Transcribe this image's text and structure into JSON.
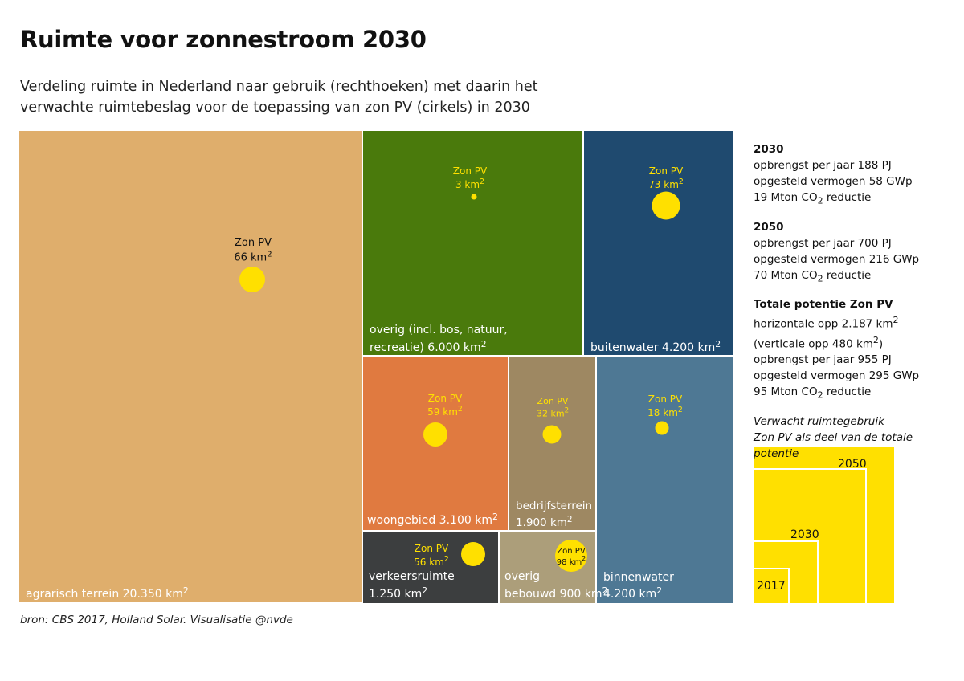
{
  "title": "Ruimte voor zonnestroom 2030",
  "subtitle_line1": "Verdeling ruimte in Nederland naar gebruik (rechthoeken) met daarin het",
  "subtitle_line2": "verwachte ruimtebeslag voor de toepassing van zon PV (cirkels) in 2030",
  "source": "bron: CBS 2017, Holland Solar. Visualisatie @nvde",
  "colors": {
    "circle": "#ffe000",
    "agrarisch": "#dfae6c",
    "overig_natuur": "#4a7a0c",
    "buitenwater": "#1f4a6f",
    "woongebied": "#e07a40",
    "bedrijfsterrein": "#9e8862",
    "binnenwater": "#4e7894",
    "verkeersruimte": "#3c3e3f",
    "overig_bebouwd": "#ac9e7a"
  },
  "chart_data": {
    "type": "treemap",
    "unit": "km2",
    "pv_label": "Zon PV",
    "categories": [
      {
        "name": "agrarisch terrein",
        "area_label": "20.350 km",
        "area": 20350,
        "pv_label": "66 km",
        "pv_km2": 66,
        "color_key": "agrarisch",
        "pv_text": "#111111"
      },
      {
        "name": "overig (incl. bos, natuur,",
        "name2": "recreatie)",
        "area_label": "6.000 km",
        "area": 6000,
        "pv_label": "3 km",
        "pv_km2": 3,
        "color_key": "overig_natuur",
        "pv_text": "#ffe000"
      },
      {
        "name": "buitenwater",
        "area_label": "4.200 km",
        "area": 4200,
        "pv_label": "73 km",
        "pv_km2": 73,
        "color_key": "buitenwater",
        "pv_text": "#ffe000"
      },
      {
        "name": "woongebied",
        "area_label": "3.100 km",
        "area": 3100,
        "pv_label": "59 km",
        "pv_km2": 59,
        "color_key": "woongebied",
        "pv_text": "#ffe000"
      },
      {
        "name": "bedrijfsterrein",
        "area_label": "1.900 km",
        "area": 1900,
        "pv_label": "32 km",
        "pv_km2": 32,
        "color_key": "bedrijfsterrein",
        "pv_text": "#ffe000"
      },
      {
        "name": "binnenwater",
        "area_label": "4.200 km",
        "area": 4200,
        "pv_label": "18 km",
        "pv_km2": 18,
        "color_key": "binnenwater",
        "pv_text": "#ffe000"
      },
      {
        "name": "verkeersruimte",
        "area_label": "1.250 km",
        "area": 1250,
        "pv_label": "56 km",
        "pv_km2": 56,
        "color_key": "verkeersruimte",
        "pv_text": "#ffe000"
      },
      {
        "name": "overig",
        "name2": "bebouwd",
        "area_label": "900 km",
        "area": 900,
        "pv_label": "98 km",
        "pv_km2": 98,
        "color_key": "overig_bebouwd",
        "pv_text": "#111111"
      }
    ],
    "potential_chart": {
      "title_line1": "Verwacht ruimtegebruik",
      "title_line2": "Zon PV als deel van de totale",
      "title_line3": "potentie",
      "labels": [
        "2050",
        "2030",
        "2017"
      ]
    }
  },
  "side": {
    "b2030": {
      "head": "2030",
      "l1": "opbrengst per jaar 188 PJ",
      "l2": "opgesteld vermogen 58 GWp",
      "l3a": "19 Mton CO",
      "l3b": "reductie"
    },
    "b2050": {
      "head": "2050",
      "l1": "opbrengst per jaar 700 PJ",
      "l2": "opgesteld vermogen 216 GWp",
      "l3a": "70 Mton CO",
      "l3b": "reductie"
    },
    "total": {
      "head": "Totale potentie Zon PV",
      "l1": "horizontale opp 2.187 km",
      "l2": "(verticale opp 480 km",
      "l2b": ")",
      "l3": "opbrengst per jaar 955 PJ",
      "l4": "opgesteld vermogen 295 GWp",
      "l5a": "95 Mton CO",
      "l5b": "reductie"
    }
  }
}
